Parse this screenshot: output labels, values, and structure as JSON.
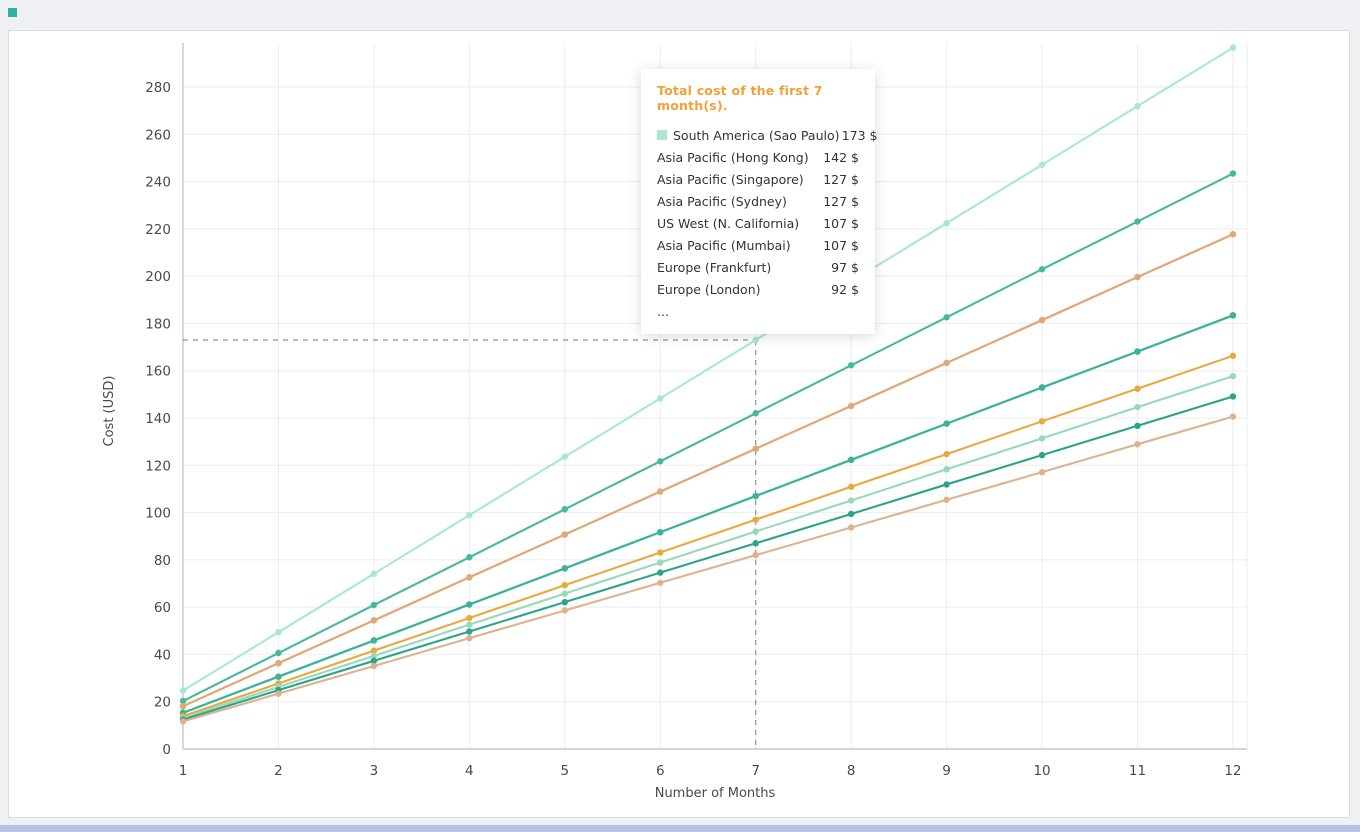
{
  "window": {
    "corner_swatch_color": "#2fb3a2",
    "bottom_strip_color": "#b6c3e4"
  },
  "chart_data": {
    "type": "line",
    "title": "",
    "xlabel": "Number of Months",
    "ylabel": "Cost (USD)",
    "x": [
      1,
      2,
      3,
      4,
      5,
      6,
      7,
      8,
      9,
      10,
      11,
      12
    ],
    "ylim": [
      0,
      300
    ],
    "yticks": [
      0,
      20,
      40,
      60,
      80,
      100,
      120,
      140,
      160,
      180,
      200,
      220,
      240,
      260,
      280
    ],
    "grid": true,
    "legend_position": "tooltip",
    "crosshair": {
      "x": 7,
      "y": 173
    },
    "series": [
      {
        "name": "South America (Sao Paulo)",
        "color": "#a9e8cf",
        "values": [
          24.7,
          49.4,
          74.1,
          98.9,
          123.6,
          148.3,
          173.0,
          197.7,
          222.4,
          247.1,
          271.9,
          296.6
        ]
      },
      {
        "name": "Asia Pacific (Hong Kong)",
        "color": "#46b89c",
        "values": [
          20.3,
          40.6,
          60.9,
          81.1,
          101.4,
          121.7,
          142.0,
          162.3,
          182.6,
          202.9,
          223.1,
          243.4
        ]
      },
      {
        "name": "Asia Pacific (Singapore)",
        "color": "#e7b389",
        "values": [
          18.1,
          36.3,
          54.4,
          72.6,
          90.7,
          108.9,
          127.0,
          145.1,
          163.3,
          181.4,
          199.6,
          217.7
        ]
      },
      {
        "name": "Asia Pacific (Sydney)",
        "color": "#dfa878",
        "values": [
          18.1,
          36.3,
          54.4,
          72.6,
          90.7,
          108.9,
          127.0,
          145.1,
          163.3,
          181.4,
          199.6,
          217.7
        ]
      },
      {
        "name": "US West (N. California)",
        "color": "#2fae90",
        "values": [
          15.3,
          30.6,
          45.9,
          61.1,
          76.4,
          91.7,
          107.0,
          122.3,
          137.6,
          152.9,
          168.1,
          183.4
        ]
      },
      {
        "name": "Asia Pacific (Mumbai)",
        "color": "#3bb398",
        "values": [
          15.3,
          30.6,
          45.9,
          61.1,
          76.4,
          91.7,
          107.0,
          122.3,
          137.6,
          152.9,
          168.1,
          183.4
        ]
      },
      {
        "name": "Europe (Frankfurt)",
        "color": "#e8a93e",
        "values": [
          13.9,
          27.7,
          41.6,
          55.4,
          69.3,
          83.1,
          97.0,
          110.9,
          124.7,
          138.6,
          152.4,
          166.3
        ]
      },
      {
        "name": "Europe (London)",
        "color": "#97d9bd",
        "values": [
          13.1,
          26.3,
          39.4,
          52.6,
          65.7,
          78.9,
          92.0,
          105.1,
          118.3,
          131.4,
          144.6,
          157.7
        ]
      },
      {
        "name": "",
        "color": "#2ca487",
        "values": [
          12.4,
          24.9,
          37.3,
          49.7,
          62.1,
          74.6,
          87.0,
          99.4,
          111.9,
          124.3,
          136.7,
          149.1
        ]
      },
      {
        "name": "",
        "color": "#deb28c",
        "values": [
          11.7,
          23.4,
          35.1,
          46.9,
          58.6,
          70.3,
          82.0,
          93.7,
          105.4,
          117.1,
          128.9,
          140.6
        ]
      }
    ]
  },
  "tooltip": {
    "title": "Total cost of the first 7 month(s).",
    "title_color": "#f0a137",
    "rows": [
      {
        "label": "South America (Sao Paulo)",
        "value": "173 $",
        "swatch": "#a9e8cf"
      },
      {
        "label": "Asia Pacific (Hong Kong)",
        "value": "142 $"
      },
      {
        "label": "Asia Pacific (Singapore)",
        "value": "127 $"
      },
      {
        "label": "Asia Pacific (Sydney)",
        "value": "127 $"
      },
      {
        "label": "US West (N. California)",
        "value": "107 $"
      },
      {
        "label": "Asia Pacific (Mumbai)",
        "value": "107 $"
      },
      {
        "label": "Europe (Frankfurt)",
        "value": "97 $"
      },
      {
        "label": "Europe (London)",
        "value": "92 $"
      },
      {
        "label": "...",
        "value": ""
      }
    ]
  }
}
